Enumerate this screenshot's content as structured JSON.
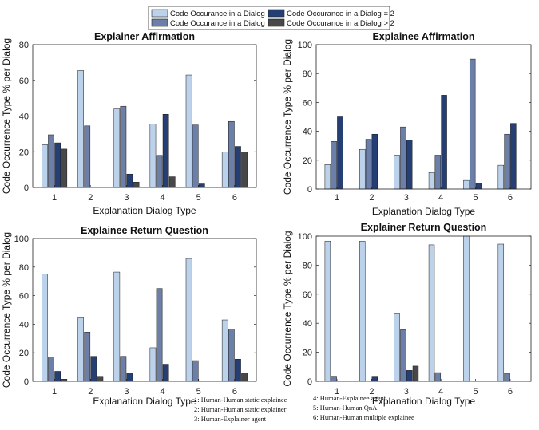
{
  "colors": [
    "#bcd1ea",
    "#6b7fa8",
    "#253f74",
    "#484848"
  ],
  "legend": {
    "entries": [
      "Code Occurance in a Dialog = 0",
      "Code Occurance in a Dialog = 1",
      "Code Occurance in a Dialog = 2",
      "Code Occurance in a Dialog > 2"
    ]
  },
  "ylabel": "Code  Occurrence Type % per Dialog",
  "notes": [
    "1: Human-Human static explainee",
    "2: Human-Human static explainer",
    "3: Human-Explainer agent",
    "4: Human-Explainee agent",
    "5: Human-Human QnA",
    "6: Human-Human multiple explainee"
  ],
  "chart_data": [
    {
      "type": "bar",
      "title": "Explainer Affirmation",
      "xlabel": "Explanation Dialog Type",
      "ylabel": "Code  Occurrence Type % per Dialog",
      "categories": [
        "1",
        "2",
        "3",
        "4",
        "5",
        "6"
      ],
      "ylim": [
        0,
        80
      ],
      "yticks": [
        0,
        20,
        40,
        60,
        80
      ],
      "grid": false,
      "series": [
        {
          "name": "Code Occurance in a Dialog = 0",
          "values": [
            24,
            65.5,
            44,
            35.5,
            63,
            20
          ]
        },
        {
          "name": "Code Occurance in a Dialog = 1",
          "values": [
            29.5,
            34.5,
            45.5,
            18,
            35,
            37
          ]
        },
        {
          "name": "Code Occurance in a Dialog = 2",
          "values": [
            25,
            0,
            7.5,
            41,
            2,
            23
          ]
        },
        {
          "name": "Code Occurance in a Dialog > 2",
          "values": [
            21.5,
            0,
            3,
            6,
            0,
            20
          ]
        }
      ]
    },
    {
      "type": "bar",
      "title": "Explainee Affirmation",
      "xlabel": "Explanation Dialog Type",
      "ylabel": "Code  Occurrence Type % per Dialog",
      "categories": [
        "1",
        "2",
        "3",
        "4",
        "5",
        "6"
      ],
      "ylim": [
        0,
        100
      ],
      "yticks": [
        0,
        20,
        40,
        60,
        80,
        100
      ],
      "grid": false,
      "series": [
        {
          "name": "Code Occurance in a Dialog = 0",
          "values": [
            17,
            27.5,
            23.5,
            11.5,
            6,
            16.5
          ]
        },
        {
          "name": "Code Occurance in a Dialog = 1",
          "values": [
            33,
            34.5,
            43,
            23.5,
            90,
            38
          ]
        },
        {
          "name": "Code Occurance in a Dialog = 2",
          "values": [
            50,
            38,
            34,
            65,
            4,
            45.5
          ]
        },
        {
          "name": "Code Occurance in a Dialog > 2",
          "values": [
            0,
            0,
            0,
            0,
            0,
            0
          ]
        }
      ]
    },
    {
      "type": "bar",
      "title": "Explainee Return Question",
      "xlabel": "Explanation Dialog Type",
      "ylabel": "Code  Occurrence Type % per Dialog",
      "categories": [
        "1",
        "2",
        "3",
        "4",
        "5",
        "6"
      ],
      "ylim": [
        0,
        100
      ],
      "yticks": [
        0,
        20,
        40,
        60,
        80,
        100
      ],
      "grid": false,
      "series": [
        {
          "name": "Code Occurance in a Dialog = 0",
          "values": [
            75,
            45,
            76.5,
            23.5,
            86,
            43
          ]
        },
        {
          "name": "Code Occurance in a Dialog = 1",
          "values": [
            17,
            34.5,
            17.5,
            65,
            14.5,
            36.5
          ]
        },
        {
          "name": "Code Occurance in a Dialog = 2",
          "values": [
            7,
            17.5,
            6,
            12,
            0,
            15.5
          ]
        },
        {
          "name": "Code Occurance in a Dialog > 2",
          "values": [
            1.5,
            3.5,
            0,
            0,
            0,
            6
          ]
        }
      ]
    },
    {
      "type": "bar",
      "title": "Explainer Return Question",
      "xlabel": "Explanation Dialog Type",
      "ylabel": "Code  Occurrence Type % per Dialog",
      "categories": [
        "1",
        "2",
        "3",
        "4",
        "5",
        "6"
      ],
      "ylim": [
        0,
        100
      ],
      "yticks": [
        0,
        20,
        40,
        60,
        80,
        100
      ],
      "grid": false,
      "series": [
        {
          "name": "Code Occurance in a Dialog = 0",
          "values": [
            96.5,
            96.5,
            47,
            94,
            100,
            94.5
          ]
        },
        {
          "name": "Code Occurance in a Dialog = 1",
          "values": [
            3.5,
            0,
            35.5,
            6,
            0,
            5.5
          ]
        },
        {
          "name": "Code Occurance in a Dialog = 2",
          "values": [
            0,
            3.5,
            7.5,
            0,
            0,
            0
          ]
        },
        {
          "name": "Code Occurance in a Dialog > 2",
          "values": [
            0,
            0,
            10.5,
            0,
            0,
            0
          ]
        }
      ]
    }
  ]
}
